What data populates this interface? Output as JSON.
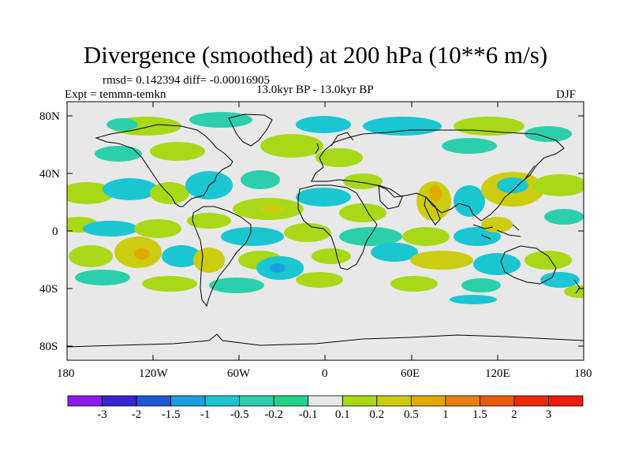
{
  "figure": {
    "title": "Divergence (smoothed) at 200 hPa (10**6 m/s)",
    "rmsd_label": "rmsd= 0.142394 diff= -0.00016905",
    "experiment_label": "Expt = temmn-temkn",
    "period_label": "13.0kyr BP - 13.0kyr BP",
    "season": "DJF"
  },
  "axes": {
    "lat_ticks": [
      "80N",
      "40N",
      "0",
      "40S",
      "80S"
    ],
    "lon_ticks": [
      "180",
      "120W",
      "60W",
      "0",
      "60E",
      "120E",
      "180"
    ]
  },
  "colorbar": {
    "labels": [
      "-3",
      "-2",
      "-1.5",
      "-1",
      "-0.5",
      "-0.2",
      "-0.1",
      "0.1",
      "0.2",
      "0.5",
      "1",
      "1.5",
      "2",
      "3"
    ],
    "colors": [
      "#8c1aea",
      "#3a22d6",
      "#1c58d6",
      "#18a0e0",
      "#1ac6d2",
      "#2bd0aa",
      "#22d38a",
      "#e8e8e8",
      "#a8d818",
      "#cccc10",
      "#e0aa00",
      "#e87f10",
      "#ea5a0c",
      "#ec2a0a",
      "#ee1a0c"
    ]
  },
  "colors": {
    "background_zero": "#e8e8e8",
    "neg_weak": "#2bd0aa",
    "neg_mid": "#1ac6d2",
    "neg_strong": "#18a0e0",
    "pos_weak": "#a8d818",
    "pos_mid": "#cccc10",
    "pos_strong": "#e0aa00"
  },
  "map_data": {
    "projection": "cylindrical equidistant",
    "lon_range": [
      -180,
      180
    ],
    "lat_range": [
      -90,
      90
    ],
    "field": "200 hPa divergence anomaly",
    "units": "10**6 m/s"
  }
}
